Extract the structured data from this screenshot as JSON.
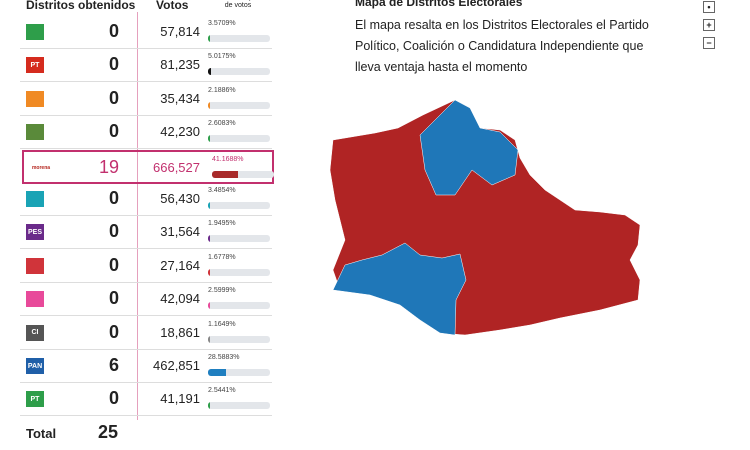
{
  "table": {
    "headers": [
      "Distritos obtenidos",
      "Votos",
      "Porcentaje de votos"
    ],
    "rows": [
      {
        "logo_color": "#2e9e4a",
        "bar_color": "#2e9e4a",
        "districts": 0,
        "votes": "57,814",
        "percent": 3.5709,
        "percent_label": "3.5709%"
      },
      {
        "logo_color": "#d52b1e",
        "logo_text": "PT",
        "bar_color": "#111111",
        "districts": 0,
        "votes": "81,235",
        "percent": 5.0175,
        "percent_label": "5.0175%"
      },
      {
        "logo_color": "#f08a24",
        "bar_color": "#f08a24",
        "districts": 0,
        "votes": "35,434",
        "percent": 2.1886,
        "percent_label": "2.1886%"
      },
      {
        "logo_color": "#5a8a3a",
        "bar_color": "#2e9e4a",
        "districts": 0,
        "votes": "42,230",
        "percent": 2.6083,
        "percent_label": "2.6083%"
      },
      {
        "logo_color": "#b5261e",
        "logo_text": "morena",
        "bar_color": "#a82a2a",
        "districts": 19,
        "votes": "666,527",
        "percent": 41.1688,
        "percent_label": "41.1688%"
      },
      {
        "logo_color": "#1aa3b5",
        "bar_color": "#1aa3b5",
        "districts": 0,
        "votes": "56,430",
        "percent": 3.4854,
        "percent_label": "3.4854%"
      },
      {
        "logo_color": "#6a2a8a",
        "logo_text": "PES",
        "bar_color": "#6a2a8a",
        "districts": 0,
        "votes": "31,564",
        "percent": 1.9495,
        "percent_label": "1.9495%"
      },
      {
        "logo_color": "#d0343a",
        "bar_color": "#d0343a",
        "districts": 0,
        "votes": "27,164",
        "percent": 1.6778,
        "percent_label": "1.6778%"
      },
      {
        "logo_color": "#e84a9a",
        "bar_color": "#e84a9a",
        "districts": 0,
        "votes": "42,094",
        "percent": 2.5999,
        "percent_label": "2.5999%"
      },
      {
        "logo_color": "#555555",
        "logo_text": "CI",
        "bar_color": "#888888",
        "districts": 0,
        "votes": "18,861",
        "percent": 1.1649,
        "percent_label": "1.1649%"
      },
      {
        "logo_color": "#1f5fa8",
        "logo_text": "PAN",
        "bar_color": "#1f7fc0",
        "districts": 6,
        "votes": "462,851",
        "percent": 28.5883,
        "percent_label": "28.5883%"
      },
      {
        "logo_color": "#2e9e4a",
        "logo_text": "PT",
        "bar_color": "#2e9e4a",
        "districts": 0,
        "votes": "41,191",
        "percent": 2.5441,
        "percent_label": "2.5441%"
      }
    ],
    "total_label": "Total",
    "total": 25
  },
  "map": {
    "title": "Mapa de Distritos Electorales",
    "description": "El mapa resalta en los Distritos Electorales el Partido Político, Coalición o Candidatura Independiente que lleva ventaja hasta el momento",
    "controls": [
      "•",
      "+",
      "−"
    ]
  }
}
